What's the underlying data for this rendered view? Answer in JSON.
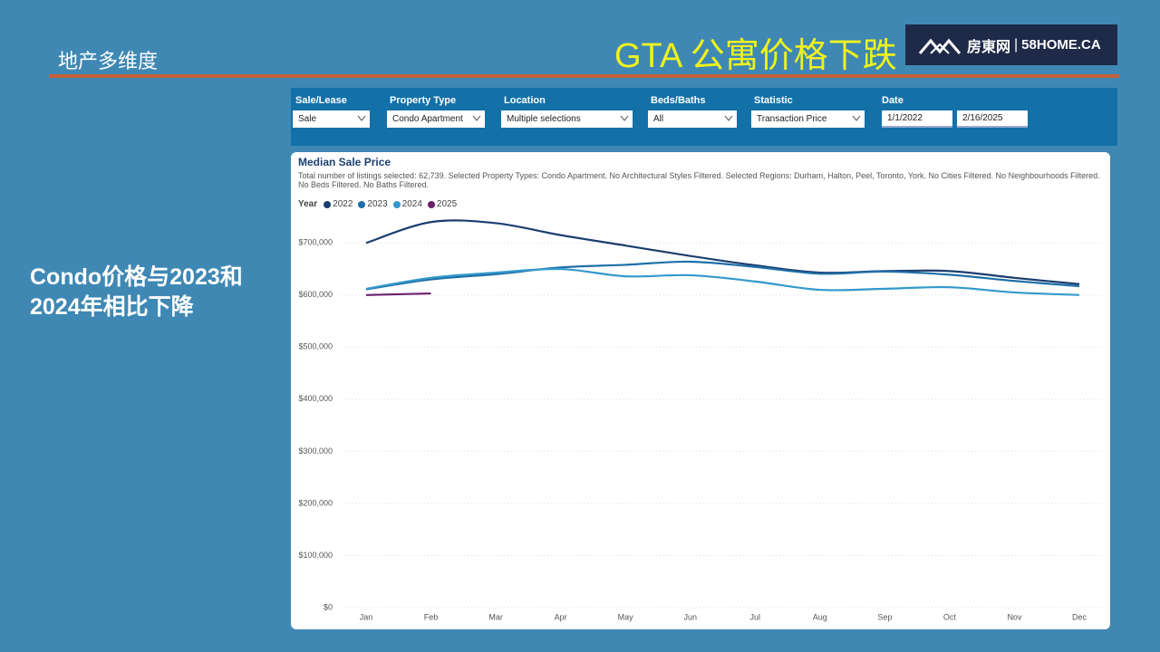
{
  "slide": {
    "section": "地产多维度",
    "title": "GTA 公寓价格下跌",
    "logo": {
      "brand": "房東网",
      "site": "58HOME.CA"
    },
    "note_lines": [
      "Condo价格与2023和",
      "2024年相比下降"
    ]
  },
  "filters": [
    {
      "label": "Sale/Lease",
      "value": "Sale"
    },
    {
      "label": "Property Type",
      "value": "Condo Apartment"
    },
    {
      "label": "Location",
      "value": "Multiple selections"
    },
    {
      "label": "Beds/Baths",
      "value": "All"
    },
    {
      "label": "Statistic",
      "value": "Transaction Price"
    }
  ],
  "date_filter": {
    "label": "Date",
    "start": "1/1/2022",
    "end": "2/16/2025"
  },
  "chart_data": {
    "type": "line",
    "title": "Median Sale Price",
    "subtitle": "Total number of listings selected: 62,739. Selected Property Types: Condo Apartment. No Architectural Styles Filtered. Selected Regions: Durham, Halton, Peel, Toronto, York. No Cities Filtered. No Neighbourhoods Filtered. No Beds Filtered. No Baths Filtered.",
    "legend_title": "Year",
    "categories": [
      "Jan",
      "Feb",
      "Mar",
      "Apr",
      "May",
      "Jun",
      "Jul",
      "Aug",
      "Sep",
      "Oct",
      "Nov",
      "Dec"
    ],
    "series": [
      {
        "name": "2022",
        "color": "#1b3d6e",
        "values": [
          700000,
          740000,
          738000,
          715000,
          695000,
          675000,
          657000,
          643000,
          646000,
          646000,
          633000,
          621000
        ]
      },
      {
        "name": "2023",
        "color": "#1f6fa8",
        "values": [
          611000,
          630000,
          640000,
          653000,
          658000,
          664000,
          654000,
          641000,
          645000,
          639000,
          627000,
          617000
        ]
      },
      {
        "name": "2024",
        "color": "#3399cc",
        "values": [
          612000,
          633000,
          643000,
          650000,
          636000,
          638000,
          626000,
          610000,
          612000,
          615000,
          605000,
          600000
        ]
      },
      {
        "name": "2025",
        "color": "#6b1f6e",
        "values": [
          600000,
          603000,
          null,
          null,
          null,
          null,
          null,
          null,
          null,
          null,
          null,
          null
        ]
      }
    ],
    "ylim": [
      0,
      770000
    ],
    "yticks": [
      {
        "value": 0,
        "label": "$0"
      },
      {
        "value": 100000,
        "label": "$100,000"
      },
      {
        "value": 200000,
        "label": "$200,000"
      },
      {
        "value": 300000,
        "label": "$300,000"
      },
      {
        "value": 400000,
        "label": "$400,000"
      },
      {
        "value": 500000,
        "label": "$500,000"
      },
      {
        "value": 600000,
        "label": "$600,000"
      },
      {
        "value": 700000,
        "label": "$700,000"
      }
    ],
    "grid": true
  }
}
